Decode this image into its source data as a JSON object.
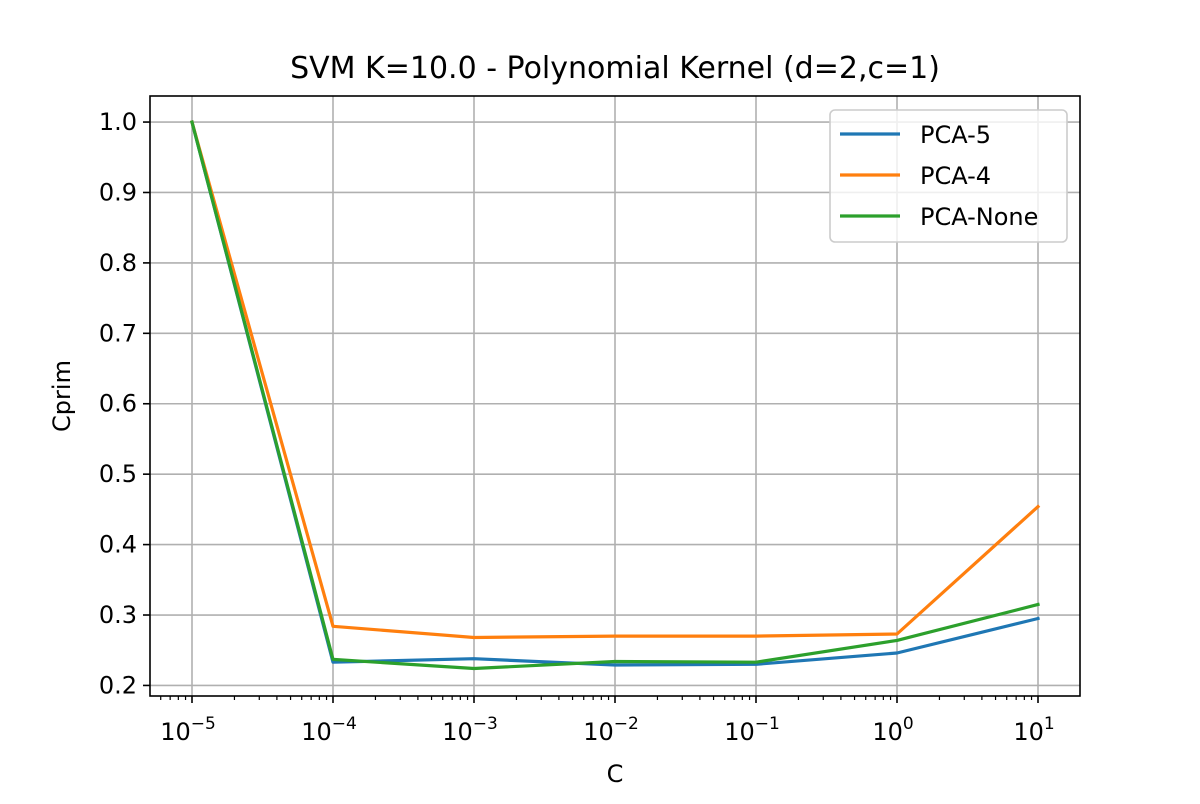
{
  "chart_data": {
    "type": "line",
    "title": "SVM K=10.0 - Polynomial Kernel (d=2,c=1)",
    "xlabel": "C",
    "ylabel": "Cprim",
    "xscale": "log",
    "x": [
      1e-05,
      0.0001,
      0.001,
      0.01,
      0.1,
      1,
      10
    ],
    "x_tick_bases": [
      "10",
      "10",
      "10",
      "10",
      "10",
      "10",
      "10"
    ],
    "x_tick_exponents": [
      "−5",
      "−4",
      "−3",
      "−2",
      "−1",
      "0",
      "1"
    ],
    "ylim": [
      0.185,
      1.037
    ],
    "y_ticks": [
      "0.2",
      "0.3",
      "0.4",
      "0.5",
      "0.6",
      "0.7",
      "0.8",
      "0.9",
      "1.0"
    ],
    "grid": true,
    "legend_position": "top-right",
    "series": [
      {
        "name": "PCA-5",
        "color": "#1f77b4",
        "values": [
          1.0,
          0.233,
          0.238,
          0.229,
          0.23,
          0.246,
          0.295
        ]
      },
      {
        "name": "PCA-4",
        "color": "#ff7f0e",
        "values": [
          1.0,
          0.284,
          0.268,
          0.27,
          0.27,
          0.273,
          0.454
        ]
      },
      {
        "name": "PCA-None",
        "color": "#2ca02c",
        "values": [
          1.0,
          0.237,
          0.224,
          0.234,
          0.233,
          0.264,
          0.315
        ]
      }
    ]
  }
}
